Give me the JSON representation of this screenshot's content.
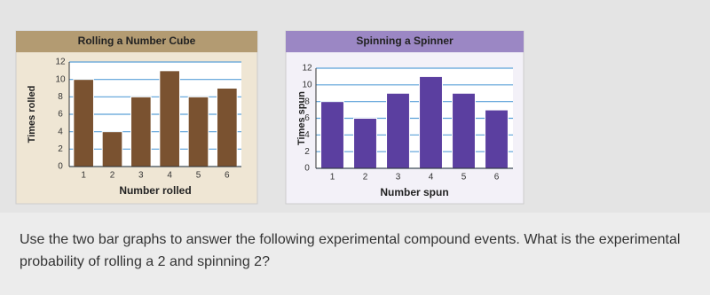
{
  "chart_data": [
    {
      "type": "bar",
      "title": "Rolling a Number Cube",
      "x_label": "Number rolled",
      "y_label": "Times rolled",
      "categories": [
        "1",
        "2",
        "3",
        "4",
        "5",
        "6"
      ],
      "values": [
        10,
        4,
        8,
        11,
        8,
        9
      ],
      "color": "#7a5230",
      "ylim": [
        0,
        12
      ],
      "yticks": [
        0,
        2,
        4,
        6,
        8,
        10,
        12
      ],
      "grid": true
    },
    {
      "type": "bar",
      "title": "Spinning a Spinner",
      "x_label": "Number spun",
      "y_label": "Times spun",
      "categories": [
        "1",
        "2",
        "3",
        "4",
        "5",
        "6"
      ],
      "values": [
        8,
        6,
        9,
        11,
        9,
        7
      ],
      "color": "#5b3fa0",
      "ylim": [
        0,
        12
      ],
      "yticks": [
        0,
        2,
        4,
        6,
        8,
        10,
        12
      ],
      "grid": true
    }
  ],
  "question": "Use the two bar graphs to answer the following experimental compound events.  What is the experimental probability of rolling a 2 and spinning 2?"
}
